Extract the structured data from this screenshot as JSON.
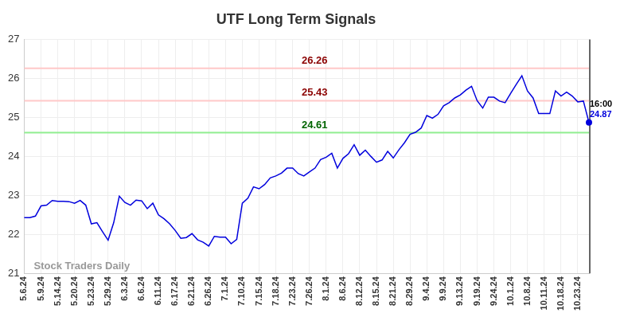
{
  "chart_data": {
    "type": "line",
    "title": "UTF Long Term Signals",
    "categories": [
      "5.6.24",
      null,
      null,
      "5.9.24",
      null,
      null,
      "5.14.24",
      null,
      null,
      "5.20.24",
      null,
      null,
      "5.23.24",
      null,
      null,
      "5.29.24",
      null,
      null,
      "6.3.24",
      null,
      null,
      "6.6.24",
      null,
      null,
      "6.11.24",
      null,
      null,
      "6.17.24",
      null,
      null,
      "6.21.24",
      null,
      null,
      "6.26.24",
      null,
      null,
      "7.1.24",
      null,
      null,
      "7.10.24",
      null,
      null,
      "7.15.24",
      null,
      null,
      "7.18.24",
      null,
      null,
      "7.23.24",
      null,
      null,
      "7.26.24",
      null,
      null,
      "8.1.24",
      null,
      null,
      "8.6.24",
      null,
      null,
      "8.12.24",
      null,
      null,
      "8.15.24",
      null,
      null,
      "8.21.24",
      null,
      null,
      "8.29.24",
      null,
      null,
      "9.4.24",
      null,
      null,
      "9.9.24",
      null,
      null,
      "9.13.24",
      null,
      null,
      "9.19.24",
      null,
      null,
      "9.24.24",
      null,
      null,
      "10.1.24",
      null,
      null,
      "10.8.24",
      null,
      null,
      "10.11.24",
      null,
      null,
      "10.18.24",
      null,
      null,
      "10.23.24",
      null,
      null
    ],
    "values": [
      22.43,
      22.43,
      22.47,
      22.73,
      22.75,
      22.87,
      22.85,
      22.85,
      22.84,
      22.8,
      22.87,
      22.75,
      22.27,
      22.3,
      22.07,
      21.85,
      22.3,
      22.98,
      22.82,
      22.75,
      22.88,
      22.86,
      22.66,
      22.8,
      22.5,
      22.4,
      22.27,
      22.1,
      21.9,
      21.92,
      22.02,
      21.86,
      21.8,
      21.7,
      21.95,
      21.93,
      21.93,
      21.76,
      21.87,
      22.8,
      22.93,
      23.22,
      23.17,
      23.28,
      23.45,
      23.5,
      23.57,
      23.7,
      23.7,
      23.56,
      23.5,
      23.6,
      23.7,
      23.92,
      23.98,
      24.08,
      23.7,
      23.95,
      24.07,
      24.3,
      24.03,
      24.16,
      24.0,
      23.85,
      23.91,
      24.13,
      23.96,
      24.17,
      24.35,
      24.57,
      24.62,
      24.73,
      25.05,
      24.98,
      25.08,
      25.3,
      25.38,
      25.5,
      25.58,
      25.7,
      25.8,
      25.43,
      25.24,
      25.52,
      25.52,
      25.42,
      25.38,
      25.62,
      25.85,
      26.07,
      25.68,
      25.5,
      25.1,
      25.1,
      25.1,
      25.68,
      25.55,
      25.65,
      25.55,
      25.4,
      25.42,
      24.87
    ],
    "color": "#0000dd",
    "ylim": [
      21,
      27
    ],
    "yticks": [
      21,
      22,
      23,
      24,
      25,
      26,
      27
    ],
    "grid": true,
    "reference_lines": [
      {
        "value": 26.26,
        "color": "#ffc8c8",
        "label_color": "#8b0000"
      },
      {
        "value": 25.43,
        "color": "#ffc8c8",
        "label_color": "#8b0000"
      },
      {
        "value": 24.61,
        "color": "#90ee90",
        "label_color": "#006400"
      }
    ],
    "last_time": "16:00",
    "watermark": "Stock Traders Daily"
  }
}
